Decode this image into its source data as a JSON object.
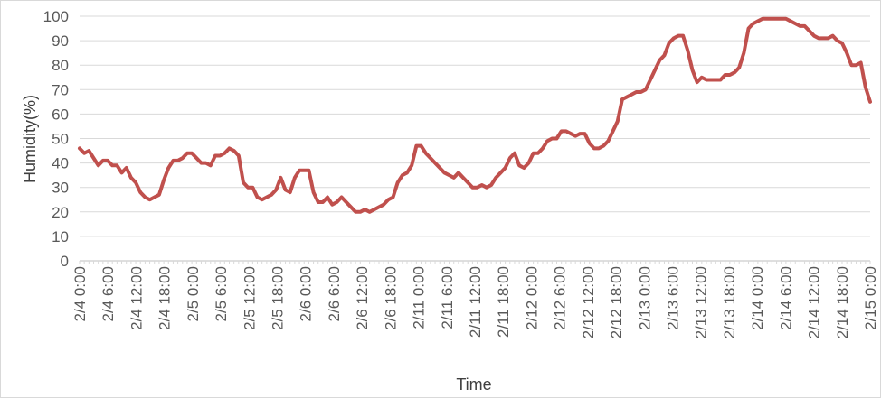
{
  "chart_data": {
    "type": "line",
    "xlabel": "Time",
    "ylabel": "Humidity(%)",
    "ylim": [
      0,
      100
    ],
    "y_ticks": [
      0,
      10,
      20,
      30,
      40,
      50,
      60,
      70,
      80,
      90,
      100
    ],
    "grid": "horizontal",
    "legend": "none",
    "color": "#c0504d",
    "x_tick_labels": [
      "2/4 0:00",
      "2/4 6:00",
      "2/4 12:00",
      "2/4 18:00",
      "2/5 0:00",
      "2/5 6:00",
      "2/5 12:00",
      "2/5 18:00",
      "2/6 0:00",
      "2/6 6:00",
      "2/6 12:00",
      "2/6 18:00",
      "2/11 0:00",
      "2/11 6:00",
      "2/11 12:00",
      "2/11 18:00",
      "2/12 0:00",
      "2/12 6:00",
      "2/12 12:00",
      "2/12 18:00",
      "2/13 0:00",
      "2/13 6:00",
      "2/13 12:00",
      "2/13 18:00",
      "2/14 0:00",
      "2/14 6:00",
      "2/14 12:00",
      "2/14 18:00",
      "2/15 0:00"
    ],
    "hours_per_tick": 6,
    "series": [
      {
        "values": [
          46,
          44,
          45,
          42,
          39,
          41,
          41,
          39,
          39,
          36,
          38,
          34,
          32,
          28,
          26,
          25,
          26,
          27,
          33,
          38,
          41,
          41,
          42,
          44,
          44,
          42,
          40,
          40,
          39,
          43,
          43,
          44,
          46,
          45,
          43,
          32,
          30,
          30,
          26,
          25,
          26,
          27,
          29,
          34,
          29,
          28,
          34,
          37,
          37,
          37,
          28,
          24,
          24,
          26,
          23,
          24,
          26,
          24,
          22,
          20,
          20,
          21,
          20,
          21,
          22,
          23,
          25,
          26,
          32,
          35,
          36,
          39,
          47,
          47,
          44,
          42,
          40,
          38,
          36,
          35,
          34,
          36,
          34,
          32,
          30,
          30,
          31,
          30,
          31,
          34,
          36,
          38,
          42,
          44,
          39,
          38,
          40,
          44,
          44,
          46,
          49,
          50,
          50,
          53,
          53,
          52,
          51,
          52,
          52,
          48,
          46,
          46,
          47,
          49,
          53,
          57,
          66,
          67,
          68,
          69,
          69,
          70,
          74,
          78,
          82,
          84,
          89,
          91,
          92,
          92,
          86,
          78,
          73,
          75,
          74,
          74,
          74,
          74,
          76,
          76,
          77,
          79,
          85,
          95,
          97,
          98,
          99,
          99,
          99,
          99,
          99,
          99,
          98,
          97,
          96,
          96,
          94,
          92,
          91,
          91,
          91,
          92,
          90,
          89,
          85,
          80,
          80,
          81,
          71,
          65
        ]
      }
    ]
  }
}
